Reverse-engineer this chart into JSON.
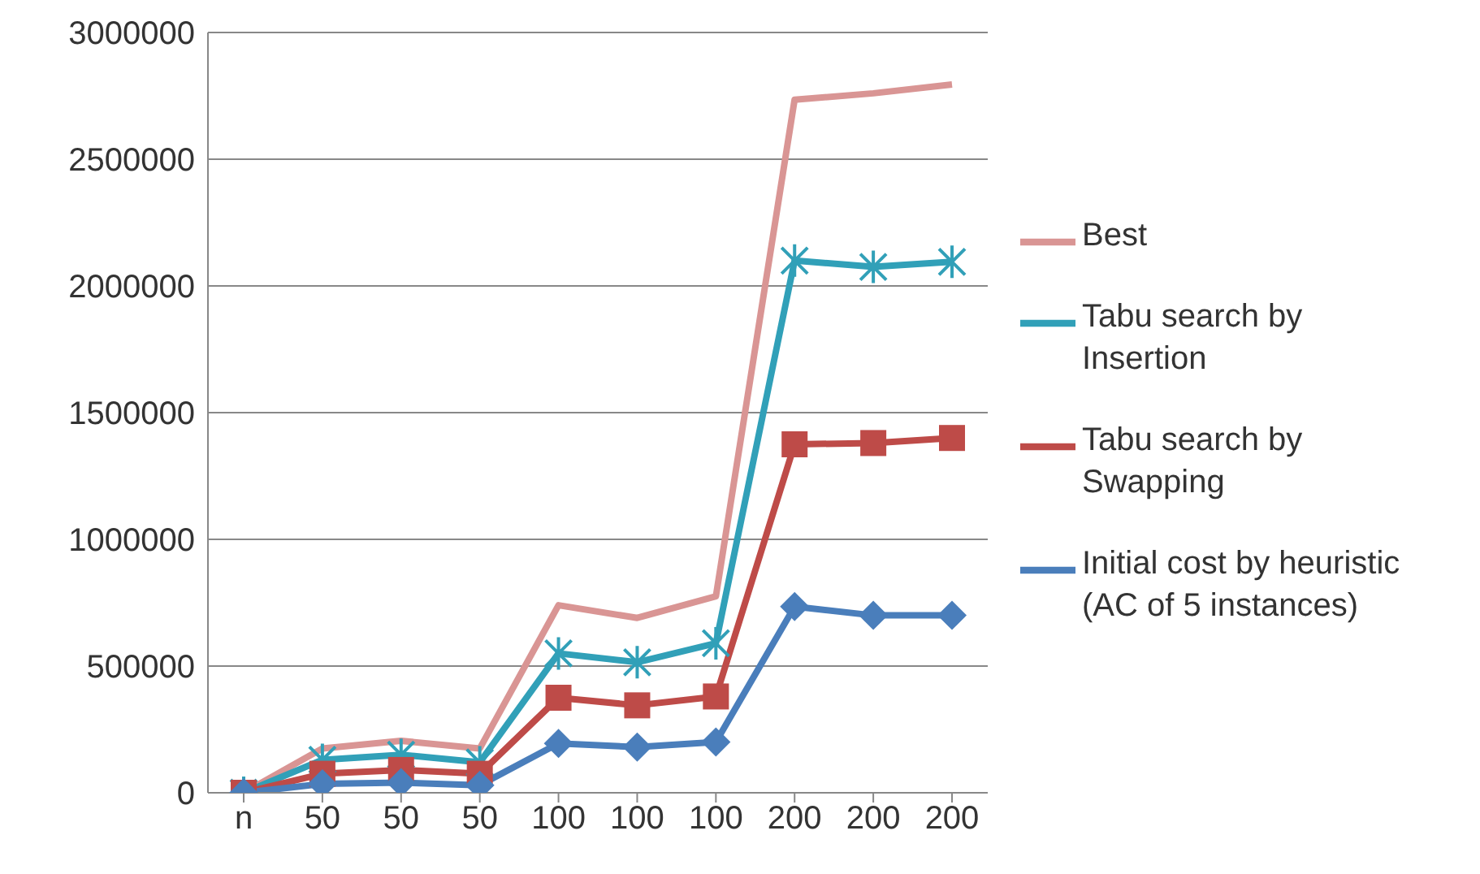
{
  "chart_data": {
    "type": "line",
    "categories": [
      "n",
      "50",
      "50",
      "50",
      "100",
      "100",
      "100",
      "200",
      "200",
      "200"
    ],
    "series": [
      {
        "name": "Best",
        "color": "#d99594",
        "marker": "none",
        "values": [
          0,
          175000,
          205000,
          175000,
          740000,
          690000,
          775000,
          2735000,
          2760000,
          2795000
        ]
      },
      {
        "name": "Tabu search by Insertion",
        "color": "#31a0b8",
        "marker": "cross",
        "values": [
          0,
          130000,
          150000,
          120000,
          550000,
          515000,
          590000,
          2100000,
          2075000,
          2095000
        ]
      },
      {
        "name": "Tabu search by Swapping",
        "color": "#be4b48",
        "marker": "square",
        "values": [
          0,
          75000,
          90000,
          75000,
          375000,
          345000,
          380000,
          1375000,
          1380000,
          1400000
        ]
      },
      {
        "name": "Initial cost by heuristic (AC of 5 instances)",
        "color": "#4a7ebb",
        "marker": "diamond",
        "values": [
          0,
          35000,
          40000,
          30000,
          195000,
          180000,
          200000,
          735000,
          700000,
          700000
        ]
      }
    ],
    "ylim": [
      0,
      3000000
    ],
    "yticks": [
      0,
      500000,
      1000000,
      1500000,
      2000000,
      2500000,
      3000000
    ],
    "grid": "y",
    "legend": "right",
    "line_style": "solid"
  }
}
